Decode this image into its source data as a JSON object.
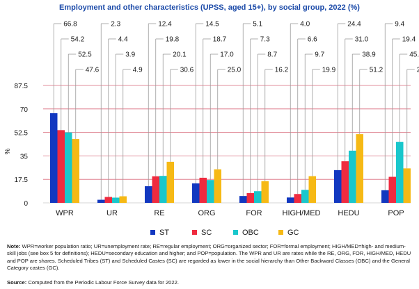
{
  "chart_data": {
    "type": "bar",
    "title": "Employment and other characteristics (UPSS, aged 15+), by social group, 2022 (%)",
    "ylabel": "%",
    "ylim": [
      0,
      87.5
    ],
    "yticks": [
      "0",
      "17.5",
      "35",
      "52.5",
      "70",
      "87.5"
    ],
    "ytick_values": [
      0,
      17.5,
      35,
      52.5,
      70,
      87.5
    ],
    "grid": true,
    "legend_position": "bottom",
    "categories": [
      "WPR",
      "UR",
      "RE",
      "ORG",
      "FOR",
      "HIGH/MED",
      "HEDU",
      "POP"
    ],
    "series": [
      {
        "name": "ST",
        "color": "#1238c0",
        "values": [
          66.8,
          2.3,
          12.4,
          14.5,
          5.1,
          4.0,
          24.4,
          9.4
        ],
        "labels": [
          "66.8",
          "2.3",
          "12.4",
          "14.5",
          "5.1",
          "4.0",
          "24.4",
          "9.4"
        ]
      },
      {
        "name": "SC",
        "color": "#ef2b3f",
        "values": [
          54.2,
          4.4,
          19.8,
          18.7,
          7.3,
          6.6,
          31.0,
          19.4
        ],
        "labels": [
          "54.2",
          "4.4",
          "19.8",
          "18.7",
          "7.3",
          "6.6",
          "31.0",
          "19.4"
        ]
      },
      {
        "name": "OBC",
        "color": "#19c7cc",
        "values": [
          52.5,
          3.9,
          20.1,
          17.0,
          8.7,
          9.7,
          38.9,
          45.5
        ],
        "labels": [
          "52.5",
          "3.9",
          "20.1",
          "17.0",
          "8.7",
          "9.7",
          "38.9",
          "45.5"
        ]
      },
      {
        "name": "GC",
        "color": "#f6b915",
        "values": [
          47.6,
          4.9,
          30.6,
          25.0,
          16.2,
          19.9,
          51.2,
          25.7
        ],
        "labels": [
          "47.6",
          "4.9",
          "30.6",
          "25.0",
          "16.2",
          "19.9",
          "51.2",
          "25.7"
        ]
      }
    ]
  },
  "colors": {
    "title": "#1a49a8",
    "axis_text": "#1a1a1a",
    "grid": "#d9697a",
    "leader": "#9a9a9a"
  },
  "note": {
    "label": "Note:",
    "text": "WPR=worker population ratio; UR=unemployment rate; RE=regular employment; ORG=organized sector; FOR=formal employment; HIGH/MED=high- and medium-skill jobs (see box 5 for definitions); HEDU=secondary education and higher; and POP=population. The WPR and UR are rates while the RE, ORG, FOR, HIGH/MED, HEDU and POP are shares. Scheduled Tribes (ST) and Scheduled Castes (SC) are regarded as lower in the social hierarchy than Other Backward Classes (OBC) and the General Category castes (GC)."
  },
  "source": {
    "label": "Source:",
    "text": "Computed from the Periodic Labour Force Survey data for 2022."
  }
}
